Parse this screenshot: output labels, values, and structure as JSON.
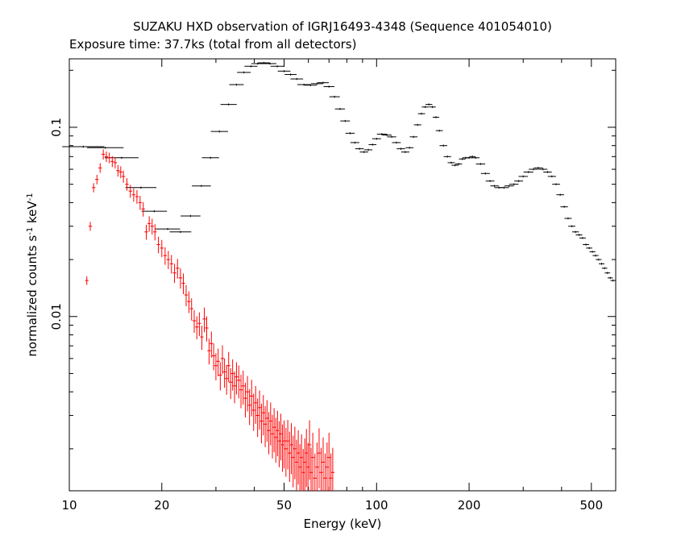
{
  "chart_data": {
    "type": "scatter",
    "title": "SUZAKU HXD observation of IGRJ16493-4348 (Sequence 401054010)",
    "subtitle": "Exposure time: 37.7ks (total from all detectors)",
    "xlabel": "Energy (keV)",
    "ylabel_main": "normalized counts s",
    "ylabel_sup1": "-1",
    "ylabel_unit": " keV",
    "ylabel_sup2": "-1",
    "x_scale": "log",
    "y_scale": "log",
    "xlim": [
      10,
      600
    ],
    "ylim": [
      0.0012,
      0.23
    ],
    "x_tick_labels": [
      "10",
      "20",
      "50",
      "100",
      "200",
      "500"
    ],
    "x_tick_values": [
      10,
      20,
      50,
      100,
      200,
      500
    ],
    "y_tick_labels": [
      "0.1",
      "0.01"
    ],
    "y_tick_values": [
      0.1,
      0.01
    ],
    "grid": false,
    "series": [
      {
        "color": "#000000",
        "points": [
          [
            11.1,
            0.079,
            1.1
          ],
          [
            13.1,
            0.078,
            1.0
          ],
          [
            14.8,
            0.069,
            0.7
          ],
          [
            17.1,
            0.048,
            0.8
          ],
          [
            18.9,
            0.036,
            0.9
          ],
          [
            20.9,
            0.029,
            0.9
          ],
          [
            23.0,
            0.028,
            0.8
          ],
          [
            24.8,
            0.034,
            0.7
          ],
          [
            26.9,
            0.049,
            0.6
          ],
          [
            28.8,
            0.069,
            0.6
          ],
          [
            30.8,
            0.095,
            0.6
          ],
          [
            33.0,
            0.132,
            0.6
          ],
          [
            35.0,
            0.168,
            0.5
          ],
          [
            37.0,
            0.195,
            0.5
          ],
          [
            39.0,
            0.21,
            0.5
          ],
          [
            41.0,
            0.217,
            0.6
          ],
          [
            43.0,
            0.219,
            0.7
          ],
          [
            45.0,
            0.217,
            0.6
          ],
          [
            47.5,
            0.21,
            0.6
          ],
          [
            50.0,
            0.198,
            0.6
          ],
          [
            52.5,
            0.19,
            0.5
          ],
          [
            55.0,
            0.18,
            0.5
          ],
          [
            58.0,
            0.168,
            0.5
          ],
          [
            61.0,
            0.167,
            0.6
          ],
          [
            64.0,
            0.17,
            0.6
          ],
          [
            67.0,
            0.172,
            0.6
          ],
          [
            70.0,
            0.164,
            0.5
          ],
          [
            73.0,
            0.145,
            0.5
          ],
          [
            76.0,
            0.125,
            0.4
          ],
          [
            79.0,
            0.108,
            0.4
          ],
          [
            82.0,
            0.093,
            0.4
          ],
          [
            85.0,
            0.083,
            0.4
          ],
          [
            88.0,
            0.077,
            0.4
          ],
          [
            91.0,
            0.074,
            0.4
          ],
          [
            94.0,
            0.076,
            0.4
          ],
          [
            97.0,
            0.081,
            0.4
          ],
          [
            100.0,
            0.087,
            0.4
          ],
          [
            104.0,
            0.092,
            0.4
          ],
          [
            108.0,
            0.091,
            0.4
          ],
          [
            112.0,
            0.089,
            0.4
          ],
          [
            116.0,
            0.083,
            0.4
          ],
          [
            120.0,
            0.077,
            0.4
          ],
          [
            124.0,
            0.074,
            0.4
          ],
          [
            128.0,
            0.078,
            0.4
          ],
          [
            132.0,
            0.089,
            0.4
          ],
          [
            136.0,
            0.103,
            0.4
          ],
          [
            140.0,
            0.118,
            0.4
          ],
          [
            144.0,
            0.128,
            0.4
          ],
          [
            148.0,
            0.132,
            0.4
          ],
          [
            152.0,
            0.128,
            0.4
          ],
          [
            156.0,
            0.113,
            0.4
          ],
          [
            160.0,
            0.096,
            0.4
          ],
          [
            165.0,
            0.08,
            0.4
          ],
          [
            170.0,
            0.07,
            0.4
          ],
          [
            175.0,
            0.065,
            0.4
          ],
          [
            180.0,
            0.063,
            0.4
          ],
          [
            185.0,
            0.064,
            0.4
          ],
          [
            190.0,
            0.068,
            0.4
          ],
          [
            195.0,
            0.069,
            0.4
          ],
          [
            200.0,
            0.069,
            0.4
          ],
          [
            205.0,
            0.07,
            0.4
          ],
          [
            210.0,
            0.069,
            0.4
          ],
          [
            218.0,
            0.064,
            0.4
          ],
          [
            226.0,
            0.057,
            0.4
          ],
          [
            234.0,
            0.052,
            0.4
          ],
          [
            242.0,
            0.049,
            0.4
          ],
          [
            250.0,
            0.048,
            0.4
          ],
          [
            260.0,
            0.048,
            0.4
          ],
          [
            270.0,
            0.049,
            0.4
          ],
          [
            280.0,
            0.05,
            0.4
          ],
          [
            290.0,
            0.052,
            0.4
          ],
          [
            300.0,
            0.055,
            0.4
          ],
          [
            312.0,
            0.058,
            0.4
          ],
          [
            324.0,
            0.06,
            0.4
          ],
          [
            336.0,
            0.061,
            0.4
          ],
          [
            348.0,
            0.06,
            0.4
          ],
          [
            360.0,
            0.058,
            0.4
          ],
          [
            372.0,
            0.055,
            0.4
          ],
          [
            384.0,
            0.05,
            0.4
          ],
          [
            396.0,
            0.044,
            0.4
          ],
          [
            408.0,
            0.038,
            0.4
          ],
          [
            420.0,
            0.033,
            0.4
          ],
          [
            432.0,
            0.03,
            0.4
          ],
          [
            444.0,
            0.028,
            0.4
          ],
          [
            456.0,
            0.027,
            0.4
          ],
          [
            468.0,
            0.026,
            0.4
          ],
          [
            480.0,
            0.024,
            0.4
          ],
          [
            492.0,
            0.023,
            0.4
          ],
          [
            504.0,
            0.022,
            0.4
          ],
          [
            516.0,
            0.021,
            0.4
          ],
          [
            528.0,
            0.02,
            0.4
          ],
          [
            540.0,
            0.019,
            0.4
          ],
          [
            552.0,
            0.018,
            0.4
          ],
          [
            564.0,
            0.017,
            0.4
          ],
          [
            576.0,
            0.016,
            0.4
          ],
          [
            588.0,
            0.0155,
            0.4
          ]
        ]
      },
      {
        "color": "#ff0000",
        "points": [
          [
            11.4,
            0.0155
          ],
          [
            11.7,
            0.03
          ],
          [
            12.0,
            0.048
          ],
          [
            12.3,
            0.053
          ],
          [
            12.6,
            0.061
          ],
          [
            12.9,
            0.072
          ],
          [
            13.2,
            0.07
          ],
          [
            13.5,
            0.069
          ],
          [
            13.8,
            0.066
          ],
          [
            14.1,
            0.065
          ],
          [
            14.4,
            0.059
          ],
          [
            14.7,
            0.058
          ],
          [
            15.0,
            0.055
          ],
          [
            15.4,
            0.05
          ],
          [
            15.8,
            0.046
          ],
          [
            16.2,
            0.044
          ],
          [
            16.6,
            0.043
          ],
          [
            17.0,
            0.04
          ],
          [
            17.4,
            0.037
          ],
          [
            17.8,
            0.028
          ],
          [
            18.2,
            0.031
          ],
          [
            18.6,
            0.03
          ],
          [
            19.0,
            0.028
          ],
          [
            19.5,
            0.024
          ],
          [
            20.0,
            0.023
          ],
          [
            20.5,
            0.021
          ],
          [
            21.0,
            0.02
          ],
          [
            21.5,
            0.019
          ],
          [
            22.0,
            0.017
          ],
          [
            22.5,
            0.018
          ],
          [
            23.0,
            0.016
          ],
          [
            23.5,
            0.015
          ],
          [
            24.0,
            0.013
          ],
          [
            24.5,
            0.012
          ],
          [
            25.0,
            0.011
          ],
          [
            25.5,
            0.0095
          ],
          [
            26.0,
            0.0088
          ],
          [
            26.5,
            0.0092
          ],
          [
            27.0,
            0.0078
          ],
          [
            27.5,
            0.0097
          ],
          [
            28.0,
            0.0087
          ],
          [
            28.5,
            0.0066
          ],
          [
            29.0,
            0.0072
          ],
          [
            29.5,
            0.0062
          ],
          [
            30.0,
            0.0055
          ],
          [
            30.5,
            0.0058
          ],
          [
            31.0,
            0.0049
          ],
          [
            31.5,
            0.006
          ],
          [
            32.0,
            0.0051
          ],
          [
            32.5,
            0.0047
          ],
          [
            33.0,
            0.0055
          ],
          [
            33.5,
            0.0045
          ],
          [
            34.0,
            0.005
          ],
          [
            34.5,
            0.0043
          ],
          [
            35.0,
            0.0048
          ],
          [
            35.6,
            0.0046
          ],
          [
            36.2,
            0.0041
          ],
          [
            36.8,
            0.0043
          ],
          [
            37.4,
            0.0037
          ],
          [
            38.0,
            0.004
          ],
          [
            38.6,
            0.0034
          ],
          [
            39.2,
            0.0038
          ],
          [
            39.8,
            0.0032
          ],
          [
            40.4,
            0.0035
          ],
          [
            41.0,
            0.003
          ],
          [
            41.6,
            0.0033
          ],
          [
            42.2,
            0.0028
          ],
          [
            42.8,
            0.0031
          ],
          [
            43.4,
            0.0027
          ],
          [
            44.0,
            0.0029
          ],
          [
            44.6,
            0.0025
          ],
          [
            45.2,
            0.0028
          ],
          [
            45.8,
            0.0024
          ],
          [
            46.4,
            0.0026
          ],
          [
            47.0,
            0.0023
          ],
          [
            47.6,
            0.0025
          ],
          [
            48.2,
            0.0022
          ],
          [
            48.8,
            0.0024
          ],
          [
            49.4,
            0.0021
          ],
          [
            50.0,
            0.0022
          ],
          [
            50.7,
            0.002
          ],
          [
            51.4,
            0.0022
          ],
          [
            52.1,
            0.0019
          ],
          [
            52.8,
            0.0021
          ],
          [
            53.5,
            0.0018
          ],
          [
            54.2,
            0.002
          ],
          [
            54.9,
            0.0017
          ],
          [
            55.6,
            0.0019
          ],
          [
            56.3,
            0.0016
          ],
          [
            57.0,
            0.0018
          ],
          [
            57.7,
            0.0015
          ],
          [
            58.4,
            0.0017
          ],
          [
            59.1,
            0.0019
          ],
          [
            59.8,
            0.0016
          ],
          [
            60.5,
            0.0021
          ],
          [
            61.2,
            0.0015
          ],
          [
            62.0,
            0.0018
          ],
          [
            63.0,
            0.0014
          ],
          [
            64.0,
            0.0016
          ],
          [
            65.0,
            0.0019
          ],
          [
            66.0,
            0.0015
          ],
          [
            67.0,
            0.0017
          ],
          [
            68.0,
            0.0014
          ],
          [
            69.0,
            0.0016
          ],
          [
            70.0,
            0.0018
          ],
          [
            71.0,
            0.0014
          ],
          [
            72.0,
            0.0015
          ]
        ]
      }
    ]
  }
}
